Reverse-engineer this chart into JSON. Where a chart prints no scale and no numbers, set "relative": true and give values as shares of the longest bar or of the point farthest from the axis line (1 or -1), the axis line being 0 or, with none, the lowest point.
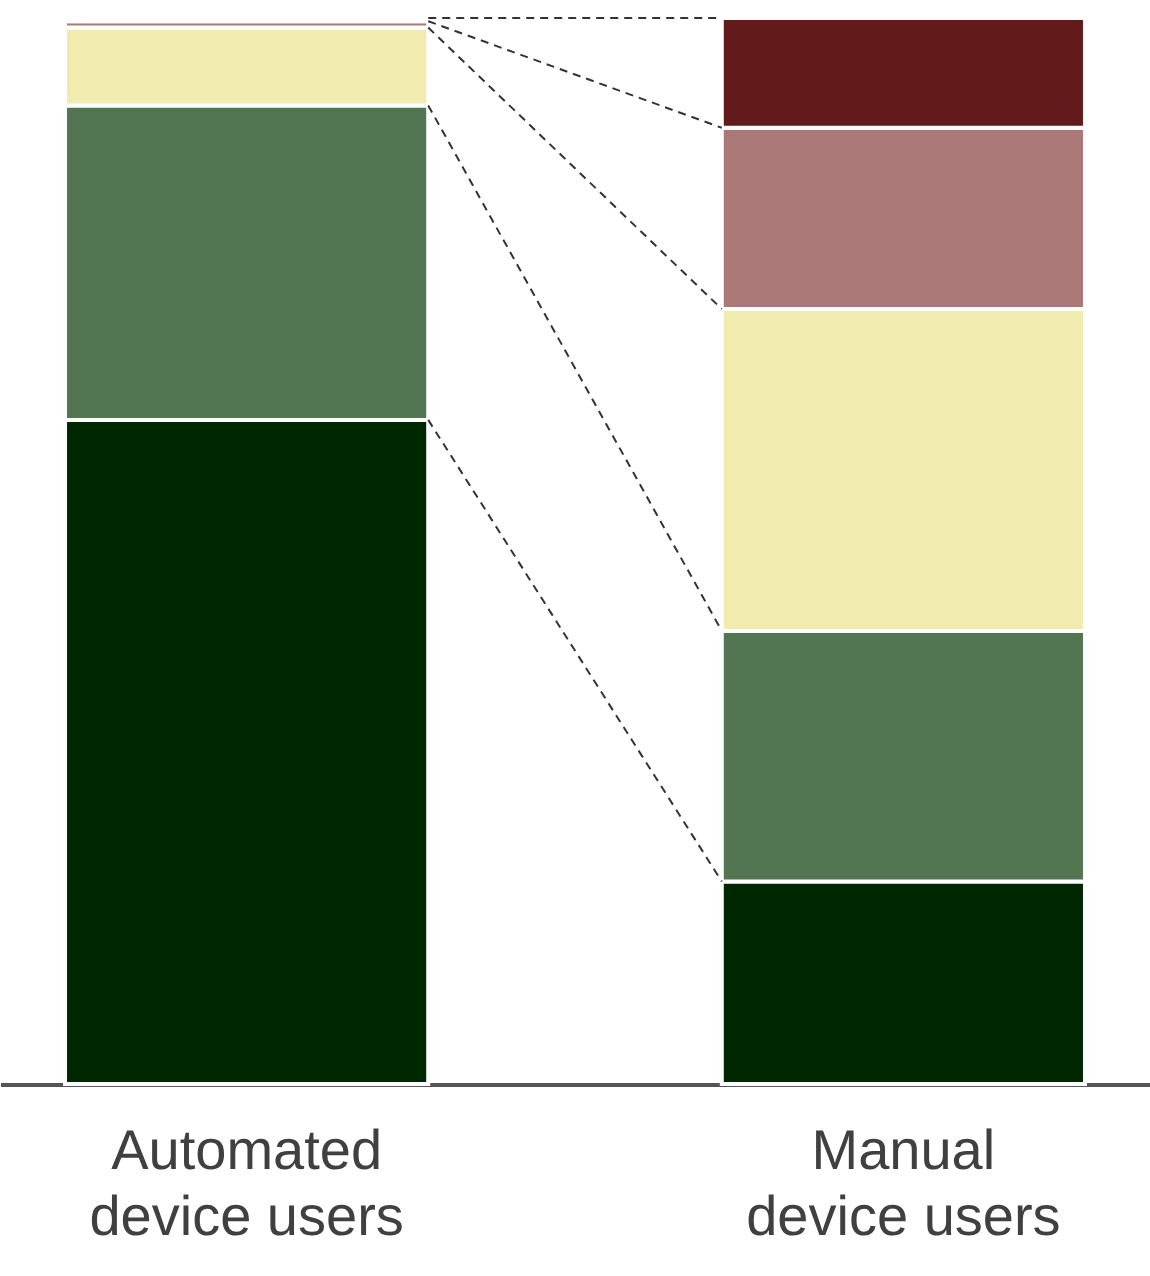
{
  "chart_data": {
    "type": "bar",
    "stacked": true,
    "relative": true,
    "legend": false,
    "categories": [
      "Automated\ndevice users",
      "Manual\ndevice users"
    ],
    "series": [
      {
        "color": "#002800",
        "values": [
          0.623,
          0.19
        ]
      },
      {
        "color": "#527552",
        "values": [
          0.295,
          0.235
        ]
      },
      {
        "color": "#f2ebaf",
        "values": [
          0.073,
          0.302
        ]
      },
      {
        "color": "#ab7878",
        "values": [
          0.006,
          0.17
        ]
      },
      {
        "color": "#621a1a",
        "values": [
          0.003,
          0.103
        ]
      }
    ]
  }
}
